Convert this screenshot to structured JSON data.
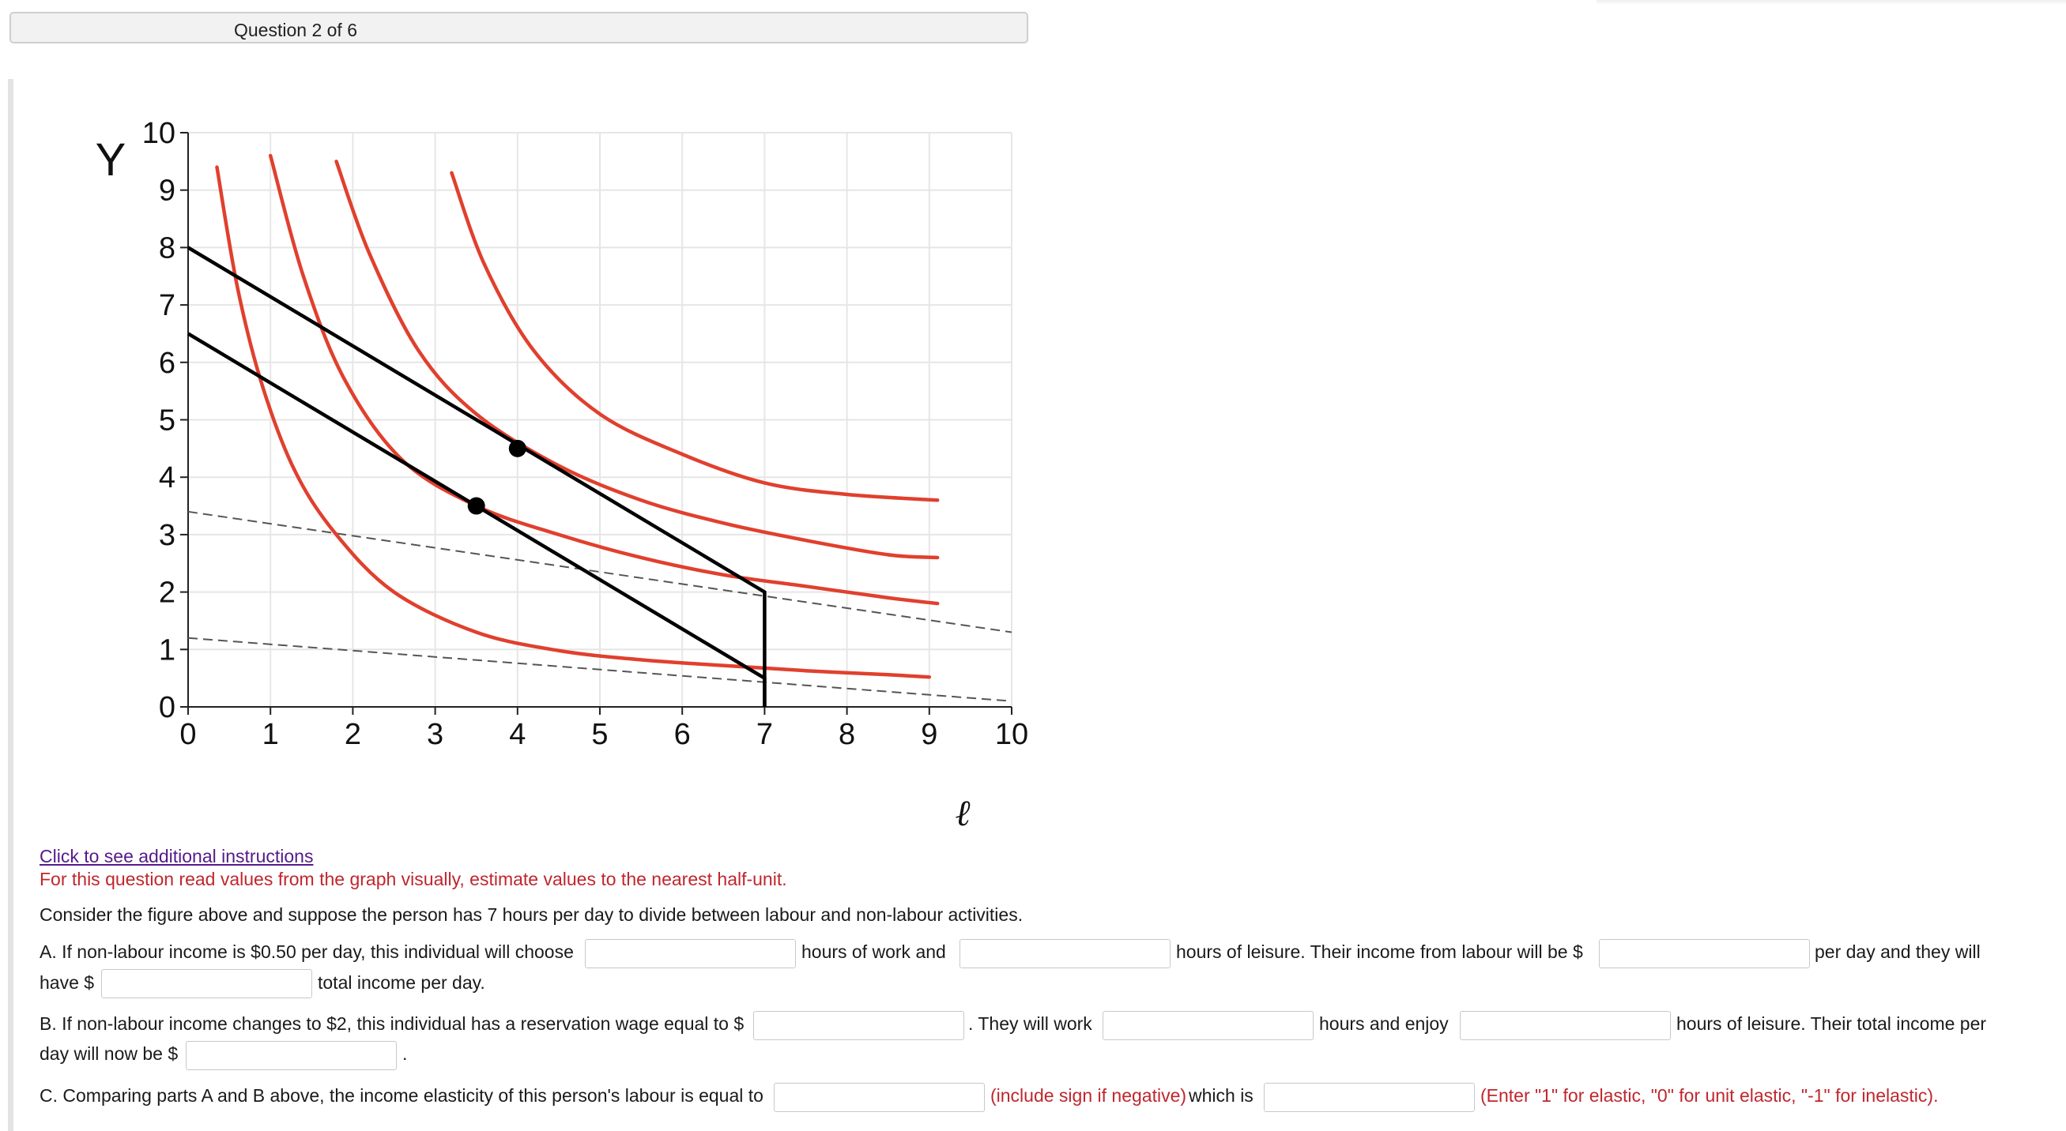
{
  "header": {
    "question_label": "Question 2 of 6"
  },
  "chart_data": {
    "type": "line",
    "title": "",
    "xlabel": "ℓ",
    "ylabel": "Y",
    "xlim": [
      0,
      10
    ],
    "ylim": [
      0,
      10
    ],
    "x_ticks": [
      "0",
      "1",
      "2",
      "3",
      "4",
      "5",
      "6",
      "7",
      "8",
      "9",
      "10"
    ],
    "y_ticks": [
      "0",
      "1",
      "2",
      "3",
      "4",
      "5",
      "6",
      "7",
      "8",
      "9",
      "10"
    ],
    "grid": true,
    "series": [
      {
        "kind": "budget",
        "color": "#000000",
        "x": [
          0,
          7,
          7
        ],
        "y": [
          8,
          2,
          0
        ]
      },
      {
        "kind": "budget",
        "color": "#000000",
        "x": [
          0,
          7,
          7
        ],
        "y": [
          6.5,
          0.5,
          0
        ]
      },
      {
        "kind": "dashed-guide",
        "color": "#555555",
        "x": [
          0,
          10
        ],
        "y": [
          3.4,
          1.3
        ]
      },
      {
        "kind": "dashed-guide",
        "color": "#555555",
        "x": [
          0,
          10
        ],
        "y": [
          1.2,
          0.1
        ]
      },
      {
        "kind": "indifference",
        "color": "#e0402e",
        "x": [
          0.35,
          0.6,
          0.9,
          1.3,
          1.8,
          2.5,
          3.5,
          4.5,
          5.5,
          6.5,
          7.5,
          8.5,
          9
        ],
        "y": [
          9.4,
          7.3,
          5.6,
          4.1,
          3.0,
          2.0,
          1.3,
          0.98,
          0.82,
          0.72,
          0.63,
          0.56,
          0.52
        ]
      },
      {
        "kind": "indifference",
        "color": "#e0402e",
        "x": [
          1,
          1.4,
          1.9,
          2.6,
          3.5,
          4.5,
          5.5,
          6.5,
          7.5,
          8.5,
          9.1
        ],
        "y": [
          9.6,
          7.5,
          5.7,
          4.3,
          3.5,
          3.0,
          2.6,
          2.3,
          2.1,
          1.9,
          1.8
        ]
      },
      {
        "kind": "indifference",
        "color": "#e0402e",
        "x": [
          1.8,
          2.2,
          2.8,
          3.5,
          4.5,
          5.5,
          6.5,
          7.5,
          8.5,
          9.1
        ],
        "y": [
          9.5,
          7.9,
          6.2,
          5.1,
          4.2,
          3.6,
          3.2,
          2.9,
          2.65,
          2.6
        ]
      },
      {
        "kind": "indifference",
        "color": "#e0402e",
        "x": [
          3.2,
          3.6,
          4.2,
          5,
          6,
          7,
          8,
          9.1
        ],
        "y": [
          9.3,
          7.7,
          6.2,
          5.1,
          4.4,
          3.9,
          3.7,
          3.6
        ]
      }
    ],
    "points": [
      {
        "x": 3.5,
        "y": 3.5
      },
      {
        "x": 4,
        "y": 4.5
      }
    ]
  },
  "instructions": {
    "link": "Click to see additional instructions",
    "note": "For this question read values from the graph visually, estimate values to the nearest half-unit.",
    "intro": "Consider the figure above and suppose the person has 7 hours per day to divide between labour and non-labour activities."
  },
  "partA": {
    "t1": "A. If non-labour income is $0.50 per day, this individual will choose",
    "t2": "hours of work and",
    "t3": "hours of leisure. Their income from labour will be $",
    "t4": "per day and they will",
    "t5": "have $",
    "t6": "total income per day."
  },
  "partB": {
    "t1": "B. If non-labour income changes to $2, this individual has a reservation wage equal to $",
    "t2": ". They will work",
    "t3": "hours and enjoy",
    "t4": "hours of leisure. Their total income per",
    "t5": "day will now be $",
    "t6": "."
  },
  "partC": {
    "t1": "C. Comparing parts A and B above, the income elasticity of this person's labour is equal to",
    "t2": "(include sign if negative)",
    "t3": "which is",
    "t4": "(Enter \"1\" for elastic, \"0\" for unit elastic, \"-1\" for inelastic)."
  }
}
